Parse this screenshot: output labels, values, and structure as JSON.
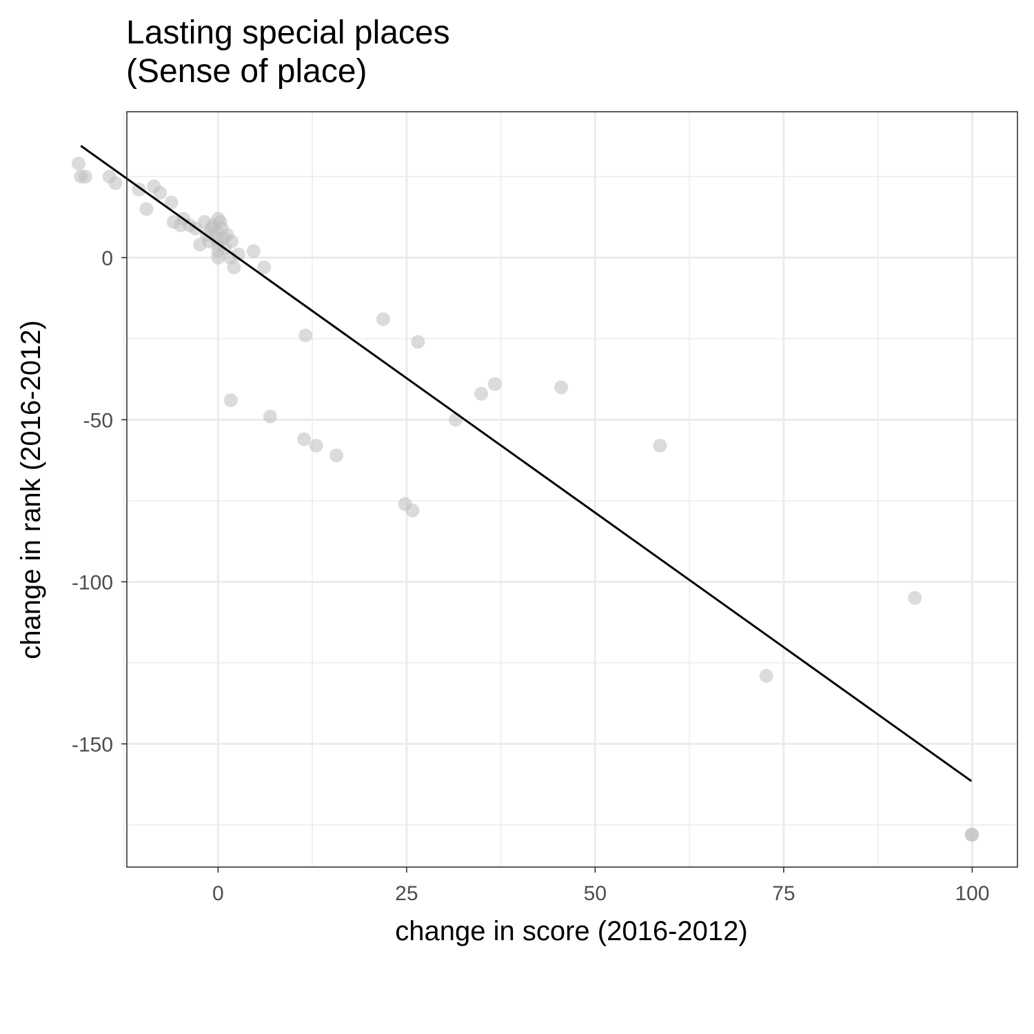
{
  "title_line1": "Lasting special places",
  "title_line2": "(Sense of place)",
  "chart_data": {
    "type": "scatter",
    "title": "Lasting special places\n(Sense of place)",
    "xlabel": "change in score (2016-2012)",
    "ylabel": "change in rank (2016-2012)",
    "xlim": [
      -12.1,
      106
    ],
    "ylim": [
      -188,
      45
    ],
    "x_ticks": [
      0,
      25,
      50,
      75,
      100
    ],
    "y_ticks": [
      0,
      -50,
      -100,
      -150
    ],
    "x_minor_ticks": [
      -12.5,
      12.5,
      37.5,
      62.5,
      87.5
    ],
    "y_minor_ticks": [
      25,
      -25,
      -75,
      -125,
      -175
    ],
    "grid": true,
    "point_color": "#bdbdbd",
    "line_color": "#000000",
    "points": [
      {
        "x": -18.5,
        "y": 29
      },
      {
        "x": -18.2,
        "y": 25
      },
      {
        "x": -17.6,
        "y": 25
      },
      {
        "x": -14.4,
        "y": 25
      },
      {
        "x": -13.6,
        "y": 23
      },
      {
        "x": -10.5,
        "y": 21
      },
      {
        "x": -8.5,
        "y": 22
      },
      {
        "x": -7.7,
        "y": 20
      },
      {
        "x": -6.2,
        "y": 17
      },
      {
        "x": -9.5,
        "y": 15
      },
      {
        "x": -5.9,
        "y": 11
      },
      {
        "x": -4.6,
        "y": 12
      },
      {
        "x": -5.0,
        "y": 10
      },
      {
        "x": -3.8,
        "y": 10
      },
      {
        "x": -3.0,
        "y": 9
      },
      {
        "x": -2.4,
        "y": 4
      },
      {
        "x": -1.8,
        "y": 11
      },
      {
        "x": -1.5,
        "y": 7
      },
      {
        "x": -1.2,
        "y": 5
      },
      {
        "x": -0.9,
        "y": 9
      },
      {
        "x": -0.6,
        "y": 10
      },
      {
        "x": -0.3,
        "y": 8
      },
      {
        "x": -0.2,
        "y": 6
      },
      {
        "x": 0.0,
        "y": 12
      },
      {
        "x": 0.0,
        "y": 4
      },
      {
        "x": 0.0,
        "y": 2
      },
      {
        "x": 0.0,
        "y": 0
      },
      {
        "x": 0.3,
        "y": 11
      },
      {
        "x": 0.5,
        "y": 9
      },
      {
        "x": 0.7,
        "y": 6
      },
      {
        "x": 0.9,
        "y": 3
      },
      {
        "x": 1.2,
        "y": 7
      },
      {
        "x": 1.6,
        "y": 0
      },
      {
        "x": 1.8,
        "y": 5
      },
      {
        "x": 2.1,
        "y": -3
      },
      {
        "x": 2.7,
        "y": 1
      },
      {
        "x": 4.7,
        "y": 2
      },
      {
        "x": 6.1,
        "y": -3
      },
      {
        "x": 1.7,
        "y": -44
      },
      {
        "x": 6.9,
        "y": -49
      },
      {
        "x": 11.6,
        "y": -24
      },
      {
        "x": 11.4,
        "y": -56
      },
      {
        "x": 13.0,
        "y": -58
      },
      {
        "x": 15.7,
        "y": -61
      },
      {
        "x": 21.9,
        "y": -19
      },
      {
        "x": 26.5,
        "y": -26
      },
      {
        "x": 24.8,
        "y": -76
      },
      {
        "x": 25.8,
        "y": -78
      },
      {
        "x": 31.5,
        "y": -50
      },
      {
        "x": 34.9,
        "y": -42
      },
      {
        "x": 36.7,
        "y": -39
      },
      {
        "x": 45.5,
        "y": -40
      },
      {
        "x": 58.6,
        "y": -58
      },
      {
        "x": 72.7,
        "y": -129
      },
      {
        "x": 92.4,
        "y": -105
      },
      {
        "x": 99.9,
        "y": -178
      },
      {
        "x": 100.0,
        "y": -178
      }
    ],
    "fit_line": {
      "x": [
        -18.2,
        99.9
      ],
      "y": [
        34.5,
        -161.5
      ]
    }
  }
}
